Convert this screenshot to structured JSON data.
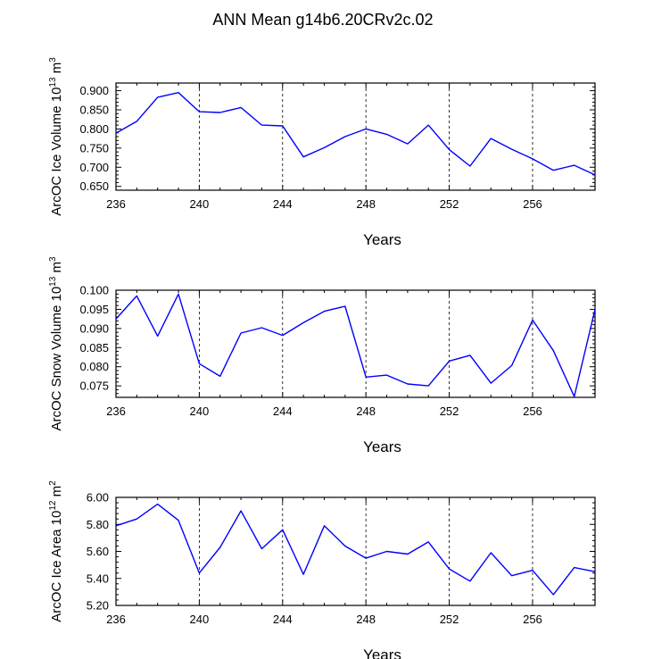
{
  "title": "ANN Mean g14b6.20CRv2c.02",
  "chart_data": [
    {
      "type": "line",
      "title": "",
      "xlabel": "Years",
      "ylabel": {
        "prefix": "ArcOC Ice Volume 10",
        "exp": "13",
        "mid": " m",
        "exp2": "3"
      },
      "xlim": [
        236,
        259
      ],
      "ylim": [
        0.64,
        0.92
      ],
      "xticks": [
        236,
        240,
        244,
        248,
        252,
        256
      ],
      "yticks": [
        0.65,
        0.7,
        0.75,
        0.8,
        0.85,
        0.9
      ],
      "ytick_labels": [
        "0.650",
        "0.700",
        "0.750",
        "0.800",
        "0.850",
        "0.900"
      ],
      "x": [
        236,
        237,
        238,
        239,
        240,
        241,
        242,
        243,
        244,
        245,
        246,
        247,
        248,
        249,
        250,
        251,
        252,
        253,
        254,
        255,
        256,
        257,
        258,
        259
      ],
      "values": [
        0.789,
        0.82,
        0.883,
        0.895,
        0.845,
        0.843,
        0.856,
        0.81,
        0.808,
        0.727,
        0.751,
        0.78,
        0.8,
        0.786,
        0.761,
        0.81,
        0.746,
        0.703,
        0.775,
        0.747,
        0.722,
        0.692,
        0.705,
        0.68
      ],
      "line_color": "#0000ff"
    },
    {
      "type": "line",
      "title": "",
      "xlabel": "Years",
      "ylabel": {
        "prefix": "ArcOC Snow Volume 10",
        "exp": "13",
        "mid": " m",
        "exp2": "3"
      },
      "xlim": [
        236,
        259
      ],
      "ylim": [
        0.072,
        0.1
      ],
      "xticks": [
        236,
        240,
        244,
        248,
        252,
        256
      ],
      "yticks": [
        0.075,
        0.08,
        0.085,
        0.09,
        0.095,
        0.1
      ],
      "ytick_labels": [
        "0.075",
        "0.080",
        "0.085",
        "0.090",
        "0.095",
        "0.100"
      ],
      "x": [
        236,
        237,
        238,
        239,
        240,
        241,
        242,
        243,
        244,
        245,
        246,
        247,
        248,
        249,
        250,
        251,
        252,
        253,
        254,
        255,
        256,
        257,
        258,
        259
      ],
      "values": [
        0.0925,
        0.0985,
        0.088,
        0.099,
        0.0808,
        0.0775,
        0.0888,
        0.0902,
        0.0882,
        0.0915,
        0.0945,
        0.0958,
        0.0773,
        0.0778,
        0.0755,
        0.075,
        0.0815,
        0.083,
        0.0757,
        0.0803,
        0.0922,
        0.0842,
        0.0722,
        0.095
      ],
      "line_color": "#0000ff"
    },
    {
      "type": "line",
      "title": "",
      "xlabel": "Years",
      "ylabel": {
        "prefix": "ArcOC Ice Area 10",
        "exp": "12",
        "mid": " m",
        "exp2": "2"
      },
      "xlim": [
        236,
        259
      ],
      "ylim": [
        5.2,
        6.0
      ],
      "xticks": [
        236,
        240,
        244,
        248,
        252,
        256
      ],
      "yticks": [
        5.2,
        5.4,
        5.6,
        5.8,
        6.0
      ],
      "ytick_labels": [
        "5.20",
        "5.40",
        "5.60",
        "5.80",
        "6.00"
      ],
      "x": [
        236,
        237,
        238,
        239,
        240,
        241,
        242,
        243,
        244,
        245,
        246,
        247,
        248,
        249,
        250,
        251,
        252,
        253,
        254,
        255,
        256,
        257,
        258,
        259
      ],
      "values": [
        5.79,
        5.84,
        5.95,
        5.83,
        5.44,
        5.63,
        5.9,
        5.62,
        5.76,
        5.43,
        5.79,
        5.64,
        5.55,
        5.6,
        5.58,
        5.67,
        5.47,
        5.38,
        5.59,
        5.42,
        5.46,
        5.28,
        5.48,
        5.45
      ],
      "line_color": "#0000ff"
    }
  ]
}
